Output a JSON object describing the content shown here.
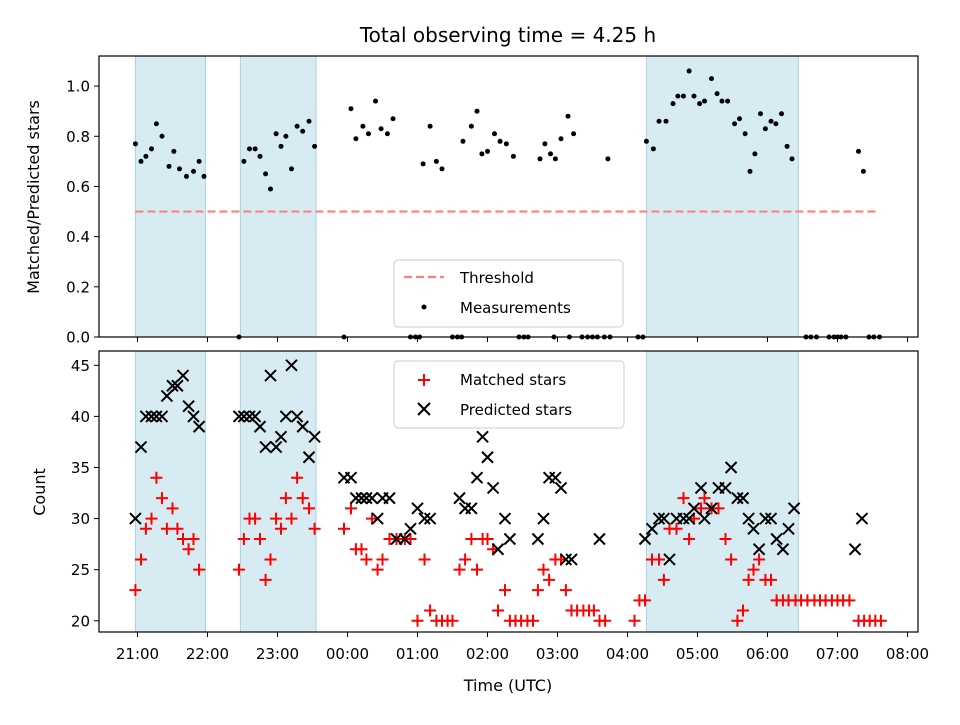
{
  "chart_data": {
    "type": "scatter",
    "title": "Total observing time = 4.25 h",
    "xlabel": "Time (UTC)",
    "x_unit": "hours (UTC, continuing past midnight)",
    "x_range": [
      20.45,
      32.15
    ],
    "x_ticks": [
      {
        "value": 21,
        "label": "21:00"
      },
      {
        "value": 22,
        "label": "22:00"
      },
      {
        "value": 23,
        "label": "23:00"
      },
      {
        "value": 24,
        "label": "00:00"
      },
      {
        "value": 25,
        "label": "01:00"
      },
      {
        "value": 26,
        "label": "02:00"
      },
      {
        "value": 27,
        "label": "03:00"
      },
      {
        "value": 28,
        "label": "04:00"
      },
      {
        "value": 29,
        "label": "05:00"
      },
      {
        "value": 30,
        "label": "06:00"
      },
      {
        "value": 31,
        "label": "07:00"
      },
      {
        "value": 32,
        "label": "08:00"
      }
    ],
    "observing_windows": [
      [
        20.97,
        21.97
      ],
      [
        22.47,
        23.55
      ],
      [
        28.27,
        30.44
      ]
    ],
    "top_panel": {
      "ylabel": "Matched/Predicted stars",
      "ylim": [
        0,
        1.12
      ],
      "y_ticks": [
        "0.0",
        "0.2",
        "0.4",
        "0.6",
        "0.8",
        "1.0"
      ],
      "y_tick_values": [
        0,
        0.2,
        0.4,
        0.6,
        0.8,
        1.0
      ],
      "threshold": {
        "name": "Threshold",
        "value": 0.5,
        "x_start": 20.97,
        "x_end": 31.6,
        "color": "#ff7f7f"
      },
      "measurements_name": "Measurements",
      "measurements": [
        [
          20.97,
          0.77
        ],
        [
          21.05,
          0.7
        ],
        [
          21.12,
          0.72
        ],
        [
          21.2,
          0.75
        ],
        [
          21.27,
          0.85
        ],
        [
          21.35,
          0.8
        ],
        [
          21.45,
          0.68
        ],
        [
          21.52,
          0.74
        ],
        [
          21.6,
          0.67
        ],
        [
          21.7,
          0.64
        ],
        [
          21.8,
          0.66
        ],
        [
          21.88,
          0.7
        ],
        [
          21.95,
          0.64
        ],
        [
          22.45,
          0.0
        ],
        [
          22.52,
          0.7
        ],
        [
          22.6,
          0.75
        ],
        [
          22.68,
          0.75
        ],
        [
          22.75,
          0.72
        ],
        [
          22.83,
          0.65
        ],
        [
          22.9,
          0.59
        ],
        [
          22.98,
          0.81
        ],
        [
          23.05,
          0.76
        ],
        [
          23.12,
          0.8
        ],
        [
          23.2,
          0.67
        ],
        [
          23.28,
          0.84
        ],
        [
          23.36,
          0.82
        ],
        [
          23.45,
          0.86
        ],
        [
          23.53,
          0.76
        ],
        [
          23.95,
          0.0
        ],
        [
          24.05,
          0.91
        ],
        [
          24.12,
          0.79
        ],
        [
          24.22,
          0.84
        ],
        [
          24.3,
          0.81
        ],
        [
          24.4,
          0.94
        ],
        [
          24.48,
          0.83
        ],
        [
          24.57,
          0.81
        ],
        [
          24.65,
          0.87
        ],
        [
          24.9,
          0.0
        ],
        [
          24.97,
          0.0
        ],
        [
          25.03,
          0.0
        ],
        [
          25.08,
          0.69
        ],
        [
          25.18,
          0.84
        ],
        [
          25.27,
          0.7
        ],
        [
          25.35,
          0.67
        ],
        [
          25.5,
          0.0
        ],
        [
          25.57,
          0.0
        ],
        [
          25.63,
          0.0
        ],
        [
          25.65,
          0.78
        ],
        [
          25.77,
          0.84
        ],
        [
          25.85,
          0.9
        ],
        [
          25.92,
          0.73
        ],
        [
          26.0,
          0.74
        ],
        [
          26.1,
          0.81
        ],
        [
          26.18,
          0.78
        ],
        [
          26.27,
          0.77
        ],
        [
          26.37,
          0.72
        ],
        [
          26.45,
          0.0
        ],
        [
          26.52,
          0.0
        ],
        [
          26.58,
          0.0
        ],
        [
          26.75,
          0.71
        ],
        [
          26.82,
          0.77
        ],
        [
          26.9,
          0.73
        ],
        [
          26.97,
          0.71
        ],
        [
          27.05,
          0.79
        ],
        [
          27.15,
          0.88
        ],
        [
          27.23,
          0.81
        ],
        [
          26.95,
          0.0
        ],
        [
          27.17,
          0.0
        ],
        [
          27.35,
          0.0
        ],
        [
          27.43,
          0.0
        ],
        [
          27.5,
          0.0
        ],
        [
          27.57,
          0.0
        ],
        [
          27.67,
          0.0
        ],
        [
          27.72,
          0.71
        ],
        [
          27.75,
          0.0
        ],
        [
          28.15,
          0.0
        ],
        [
          28.22,
          0.0
        ],
        [
          28.27,
          0.78
        ],
        [
          28.37,
          0.75
        ],
        [
          28.45,
          0.86
        ],
        [
          28.55,
          0.86
        ],
        [
          28.65,
          0.93
        ],
        [
          28.72,
          0.96
        ],
        [
          28.8,
          0.96
        ],
        [
          28.88,
          1.06
        ],
        [
          28.95,
          0.96
        ],
        [
          29.03,
          0.93
        ],
        [
          29.1,
          0.94
        ],
        [
          29.2,
          1.03
        ],
        [
          29.28,
          0.97
        ],
        [
          29.35,
          0.94
        ],
        [
          29.43,
          0.94
        ],
        [
          29.53,
          0.85
        ],
        [
          29.6,
          0.87
        ],
        [
          29.68,
          0.81
        ],
        [
          29.75,
          0.66
        ],
        [
          29.82,
          0.73
        ],
        [
          29.9,
          0.89
        ],
        [
          29.97,
          0.83
        ],
        [
          30.05,
          0.86
        ],
        [
          30.12,
          0.85
        ],
        [
          30.2,
          0.89
        ],
        [
          30.28,
          0.76
        ],
        [
          30.35,
          0.71
        ],
        [
          30.55,
          0.0
        ],
        [
          30.62,
          0.0
        ],
        [
          30.7,
          0.0
        ],
        [
          30.88,
          0.0
        ],
        [
          30.95,
          0.0
        ],
        [
          31.0,
          0.0
        ],
        [
          31.05,
          0.0
        ],
        [
          31.12,
          0.0
        ],
        [
          31.3,
          0.74
        ],
        [
          31.37,
          0.66
        ],
        [
          31.45,
          0.0
        ],
        [
          31.52,
          0.0
        ],
        [
          31.6,
          0.0
        ]
      ]
    },
    "bottom_panel": {
      "ylabel": "Count",
      "ylim": [
        18.9,
        46.4
      ],
      "y_ticks": [
        "20",
        "25",
        "30",
        "35",
        "40",
        "45"
      ],
      "y_tick_values": [
        20,
        25,
        30,
        35,
        40,
        45
      ],
      "matched_name": "Matched stars",
      "matched_color": "#ff0000",
      "matched": [
        [
          20.97,
          23
        ],
        [
          21.05,
          26
        ],
        [
          21.12,
          29
        ],
        [
          21.2,
          30
        ],
        [
          21.27,
          34
        ],
        [
          21.35,
          32
        ],
        [
          21.42,
          29
        ],
        [
          21.5,
          31
        ],
        [
          21.57,
          29
        ],
        [
          21.65,
          28
        ],
        [
          21.73,
          27
        ],
        [
          21.8,
          28
        ],
        [
          21.88,
          25
        ],
        [
          22.45,
          25
        ],
        [
          22.52,
          28
        ],
        [
          22.6,
          30
        ],
        [
          22.68,
          30
        ],
        [
          22.75,
          28
        ],
        [
          22.83,
          24
        ],
        [
          22.9,
          26
        ],
        [
          22.98,
          30
        ],
        [
          23.05,
          29
        ],
        [
          23.12,
          32
        ],
        [
          23.2,
          30
        ],
        [
          23.28,
          34
        ],
        [
          23.36,
          32
        ],
        [
          23.45,
          31
        ],
        [
          23.53,
          29
        ],
        [
          23.95,
          29
        ],
        [
          24.05,
          31
        ],
        [
          24.12,
          27
        ],
        [
          24.2,
          27
        ],
        [
          24.27,
          26
        ],
        [
          24.35,
          30
        ],
        [
          24.43,
          25
        ],
        [
          24.5,
          26
        ],
        [
          24.6,
          28
        ],
        [
          24.7,
          28
        ],
        [
          24.82,
          28
        ],
        [
          24.9,
          28
        ],
        [
          25.0,
          20
        ],
        [
          25.1,
          26
        ],
        [
          25.18,
          21
        ],
        [
          25.27,
          20
        ],
        [
          25.35,
          20
        ],
        [
          25.43,
          20
        ],
        [
          25.5,
          20
        ],
        [
          25.6,
          25
        ],
        [
          25.68,
          26
        ],
        [
          25.77,
          28
        ],
        [
          25.85,
          25
        ],
        [
          25.93,
          28
        ],
        [
          26.0,
          28
        ],
        [
          26.08,
          27
        ],
        [
          26.15,
          21
        ],
        [
          26.25,
          23
        ],
        [
          26.32,
          20
        ],
        [
          26.4,
          20
        ],
        [
          26.48,
          20
        ],
        [
          26.57,
          20
        ],
        [
          26.65,
          20
        ],
        [
          26.72,
          23
        ],
        [
          26.8,
          25
        ],
        [
          26.88,
          24
        ],
        [
          26.97,
          26
        ],
        [
          27.05,
          26
        ],
        [
          27.12,
          23
        ],
        [
          27.2,
          21
        ],
        [
          27.28,
          21
        ],
        [
          27.37,
          21
        ],
        [
          27.45,
          21
        ],
        [
          27.52,
          21
        ],
        [
          27.6,
          20
        ],
        [
          27.68,
          20
        ],
        [
          28.1,
          20
        ],
        [
          28.17,
          22
        ],
        [
          28.25,
          22
        ],
        [
          28.35,
          26
        ],
        [
          28.45,
          26
        ],
        [
          28.52,
          24
        ],
        [
          28.6,
          29
        ],
        [
          28.7,
          29
        ],
        [
          28.8,
          32
        ],
        [
          28.88,
          28
        ],
        [
          28.95,
          30
        ],
        [
          29.05,
          31
        ],
        [
          29.1,
          32
        ],
        [
          29.2,
          31
        ],
        [
          29.3,
          31
        ],
        [
          29.4,
          28
        ],
        [
          29.48,
          26
        ],
        [
          29.57,
          20
        ],
        [
          29.65,
          21
        ],
        [
          29.73,
          24
        ],
        [
          29.8,
          25
        ],
        [
          29.88,
          26
        ],
        [
          29.97,
          24
        ],
        [
          30.05,
          24
        ],
        [
          30.13,
          22
        ],
        [
          30.22,
          22
        ],
        [
          30.3,
          22
        ],
        [
          30.4,
          22
        ],
        [
          30.48,
          22
        ],
        [
          30.57,
          22
        ],
        [
          30.67,
          22
        ],
        [
          30.75,
          22
        ],
        [
          30.83,
          22
        ],
        [
          30.92,
          22
        ],
        [
          31.0,
          22
        ],
        [
          31.08,
          22
        ],
        [
          31.17,
          22
        ],
        [
          31.3,
          20
        ],
        [
          31.38,
          20
        ],
        [
          31.46,
          20
        ],
        [
          31.54,
          20
        ],
        [
          31.62,
          20
        ]
      ],
      "predicted_name": "Predicted stars",
      "predicted_color": "#000000",
      "predicted": [
        [
          20.97,
          30
        ],
        [
          21.05,
          37
        ],
        [
          21.12,
          40
        ],
        [
          21.2,
          40
        ],
        [
          21.27,
          40
        ],
        [
          21.35,
          40
        ],
        [
          21.42,
          42
        ],
        [
          21.5,
          43
        ],
        [
          21.57,
          43
        ],
        [
          21.65,
          44
        ],
        [
          21.73,
          41
        ],
        [
          21.8,
          40
        ],
        [
          21.88,
          39
        ],
        [
          22.45,
          40
        ],
        [
          22.52,
          40
        ],
        [
          22.6,
          40
        ],
        [
          22.68,
          40
        ],
        [
          22.75,
          39
        ],
        [
          22.83,
          37
        ],
        [
          22.9,
          44
        ],
        [
          22.98,
          37
        ],
        [
          23.05,
          38
        ],
        [
          23.12,
          40
        ],
        [
          23.2,
          45
        ],
        [
          23.28,
          40
        ],
        [
          23.36,
          39
        ],
        [
          23.45,
          36
        ],
        [
          23.53,
          38
        ],
        [
          23.95,
          34
        ],
        [
          24.05,
          34
        ],
        [
          24.12,
          32
        ],
        [
          24.2,
          32
        ],
        [
          24.27,
          32
        ],
        [
          24.35,
          32
        ],
        [
          24.43,
          30
        ],
        [
          24.5,
          32
        ],
        [
          24.6,
          32
        ],
        [
          24.7,
          28
        ],
        [
          24.82,
          28
        ],
        [
          24.9,
          29
        ],
        [
          25.0,
          31
        ],
        [
          25.1,
          30
        ],
        [
          25.18,
          30
        ],
        [
          25.6,
          32
        ],
        [
          25.68,
          31
        ],
        [
          25.77,
          31
        ],
        [
          25.85,
          34
        ],
        [
          25.93,
          38
        ],
        [
          26.0,
          36
        ],
        [
          26.08,
          33
        ],
        [
          26.15,
          27
        ],
        [
          26.25,
          30
        ],
        [
          26.32,
          28
        ],
        [
          26.72,
          28
        ],
        [
          26.8,
          30
        ],
        [
          26.88,
          34
        ],
        [
          26.97,
          34
        ],
        [
          27.05,
          33
        ],
        [
          27.12,
          26
        ],
        [
          27.2,
          26
        ],
        [
          27.6,
          28
        ],
        [
          28.25,
          28
        ],
        [
          28.35,
          29
        ],
        [
          28.45,
          30
        ],
        [
          28.52,
          30
        ],
        [
          28.6,
          26
        ],
        [
          28.7,
          30
        ],
        [
          28.8,
          30
        ],
        [
          28.88,
          30
        ],
        [
          28.95,
          31
        ],
        [
          29.05,
          33
        ],
        [
          29.1,
          30
        ],
        [
          29.2,
          31
        ],
        [
          29.3,
          33
        ],
        [
          29.4,
          33
        ],
        [
          29.48,
          35
        ],
        [
          29.57,
          32
        ],
        [
          29.65,
          32
        ],
        [
          29.73,
          30
        ],
        [
          29.8,
          29
        ],
        [
          29.88,
          27
        ],
        [
          29.97,
          30
        ],
        [
          30.05,
          30
        ],
        [
          30.13,
          28
        ],
        [
          30.22,
          27
        ],
        [
          30.3,
          29
        ],
        [
          30.38,
          31
        ],
        [
          31.25,
          27
        ],
        [
          31.35,
          30
        ]
      ]
    }
  }
}
